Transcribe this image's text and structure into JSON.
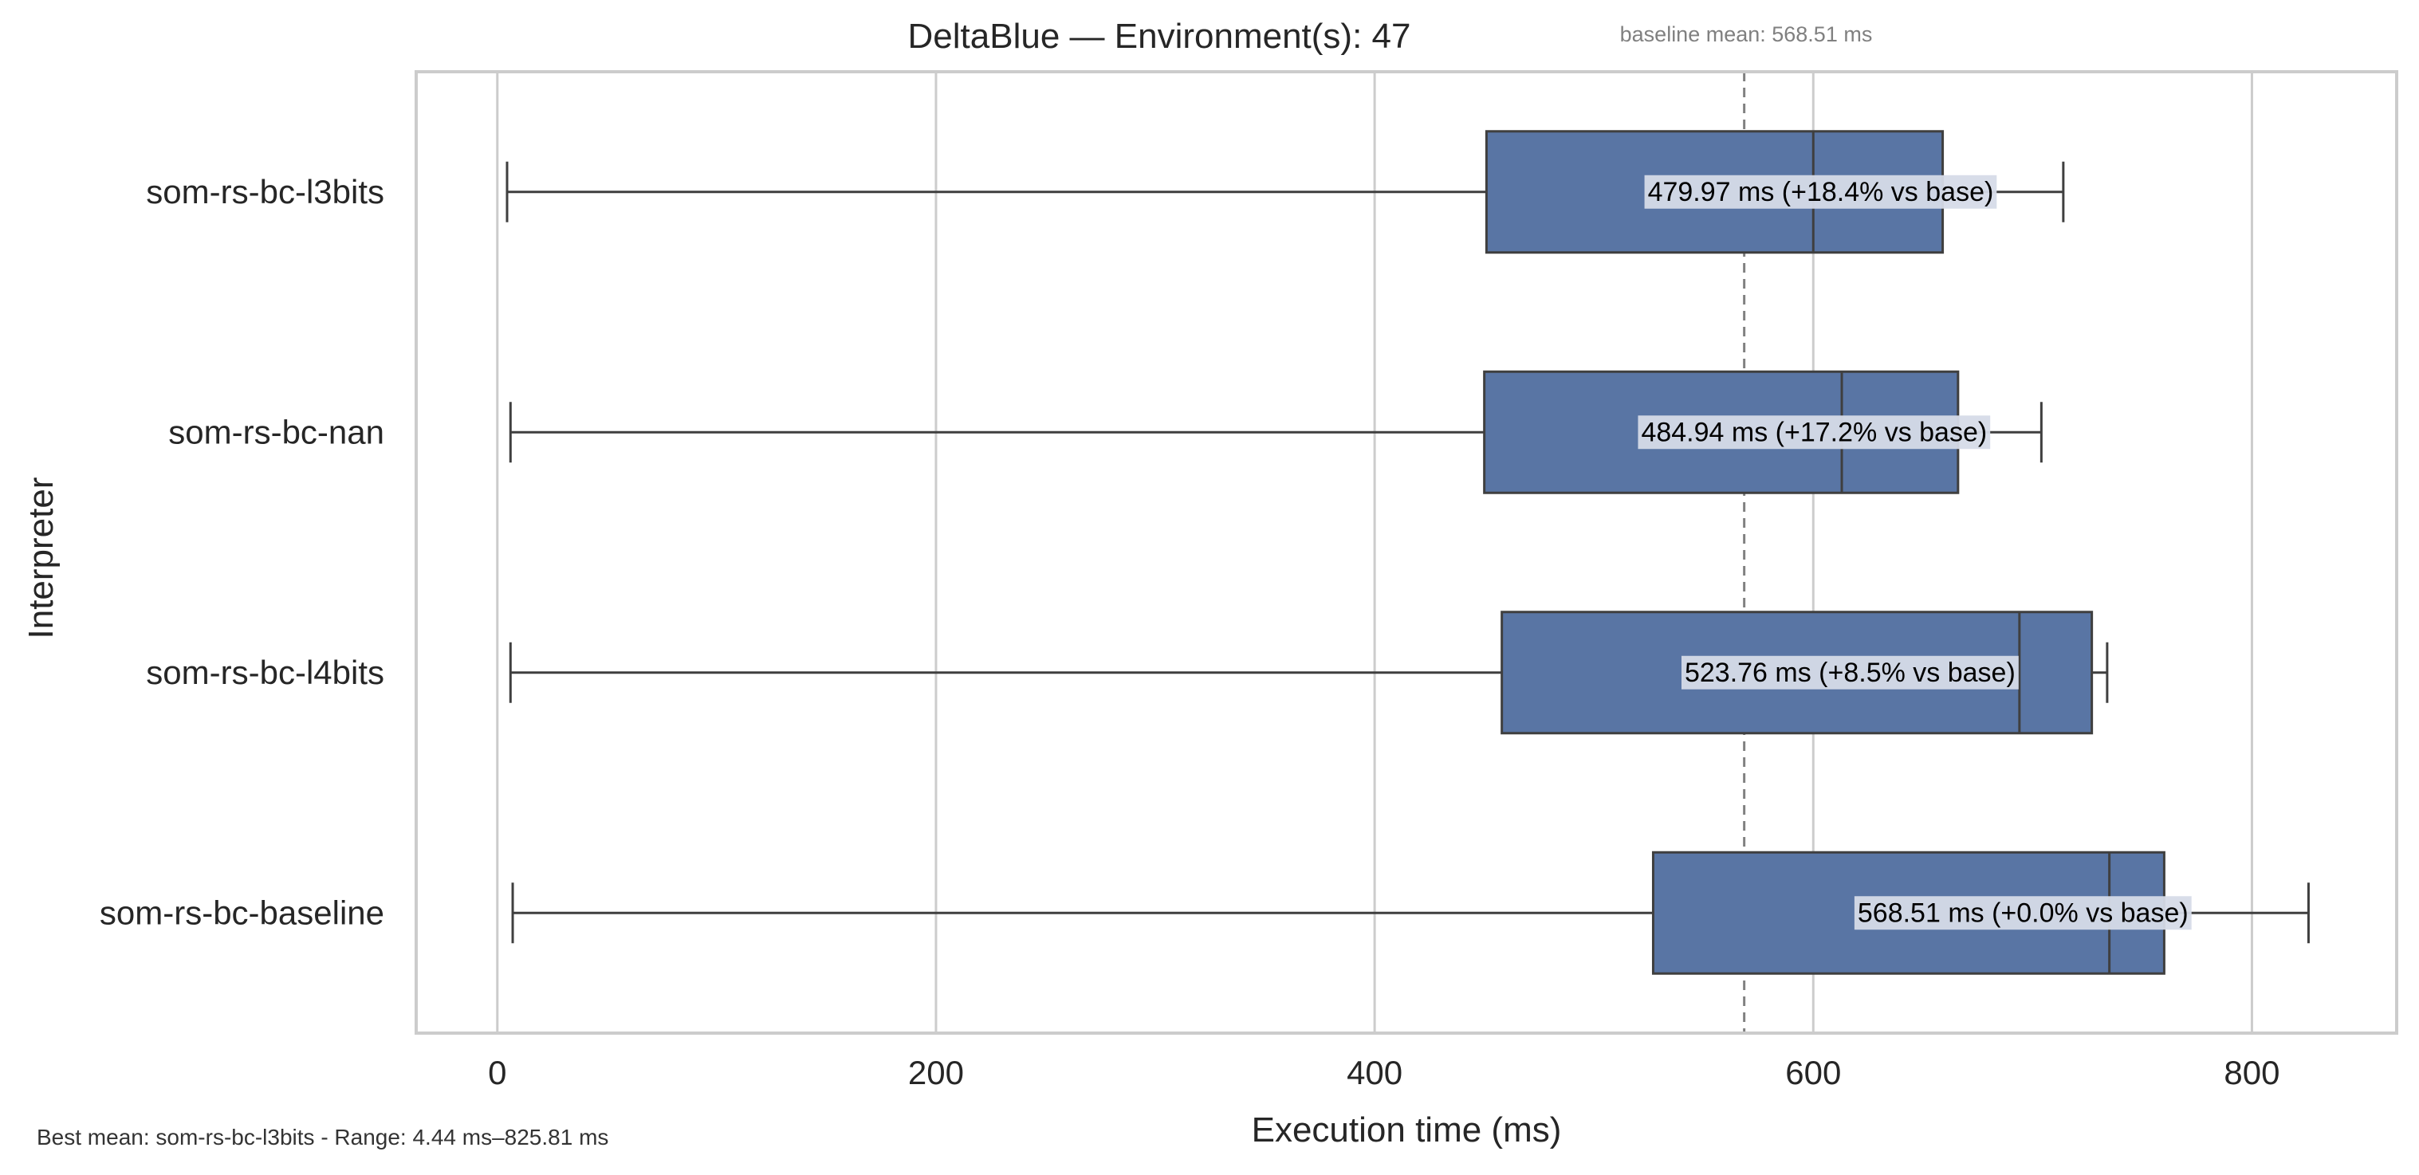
{
  "chart_data": {
    "type": "box",
    "orientation": "horizontal",
    "title": "DeltaBlue — Environment(s): 47",
    "xlabel": "Execution time (ms)",
    "ylabel": "Interpreter",
    "xlim": [
      -37,
      866
    ],
    "xticks": [
      0,
      200,
      400,
      600,
      800
    ],
    "grid": true,
    "box_color": "#5975a4",
    "edge_color": "#3f3f3f",
    "baseline": {
      "value": 568.51,
      "label": "baseline mean: 568.51 ms",
      "style": "dashed",
      "color": "#808080"
    },
    "series": [
      {
        "category": "som-rs-bc-l3bits",
        "whisker_low": 4.44,
        "q1": 451,
        "median": 600,
        "q3": 659,
        "whisker_high": 714,
        "mean": 479.97,
        "annotation": "479.97 ms  (+18.4% vs base)"
      },
      {
        "category": "som-rs-bc-nan",
        "whisker_low": 6,
        "q1": 450,
        "median": 613,
        "q3": 666,
        "whisker_high": 704,
        "mean": 484.94,
        "annotation": "484.94 ms  (+17.2% vs base)"
      },
      {
        "category": "som-rs-bc-l4bits",
        "whisker_low": 6,
        "q1": 458,
        "median": 694,
        "q3": 727,
        "whisker_high": 734,
        "mean": 523.76,
        "annotation": "523.76 ms  (+8.5% vs base)"
      },
      {
        "category": "som-rs-bc-baseline",
        "whisker_low": 7,
        "q1": 527,
        "median": 735,
        "q3": 760,
        "whisker_high": 825.81,
        "mean": 568.51,
        "annotation": "568.51 ms  (+0.0% vs base)"
      }
    ],
    "footnote": "Best mean: som-rs-bc-l3bits - Range: 4.44 ms–825.81 ms"
  }
}
